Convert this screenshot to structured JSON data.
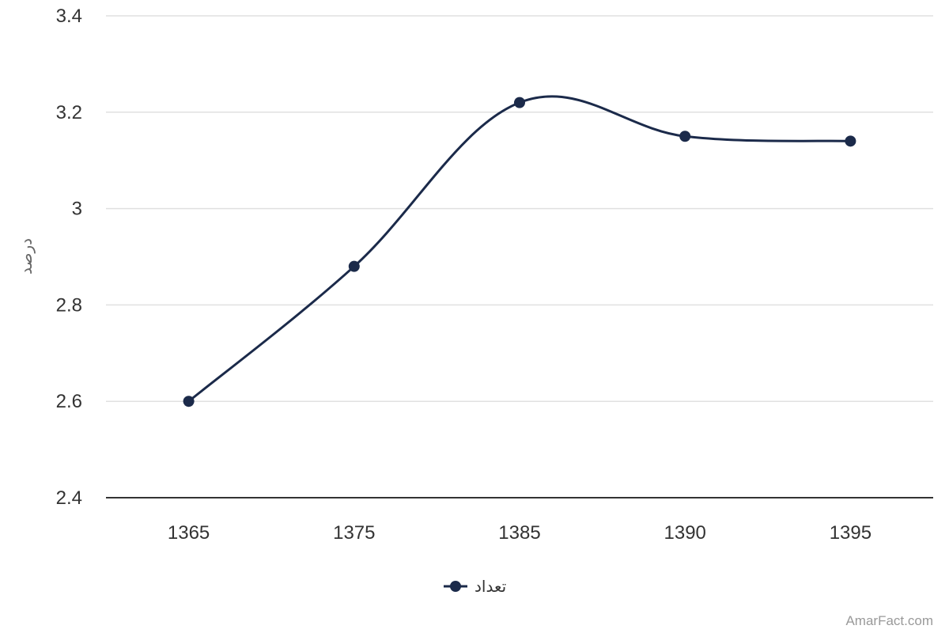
{
  "chart_data": {
    "type": "line",
    "categories": [
      "1365",
      "1375",
      "1385",
      "1390",
      "1395"
    ],
    "series": [
      {
        "name": "تعداد",
        "values": [
          2.6,
          2.88,
          3.22,
          3.15,
          3.14
        ]
      }
    ],
    "ylabel": "درصد",
    "xlabel": "",
    "ylim": [
      2.4,
      3.4
    ],
    "yticks": [
      "2.4",
      "2.6",
      "2.8",
      "3",
      "3.2",
      "3.4"
    ],
    "grid": true,
    "legend_position": "bottom",
    "line_color": "#1b2a4a"
  },
  "credit": "AmarFact.com"
}
